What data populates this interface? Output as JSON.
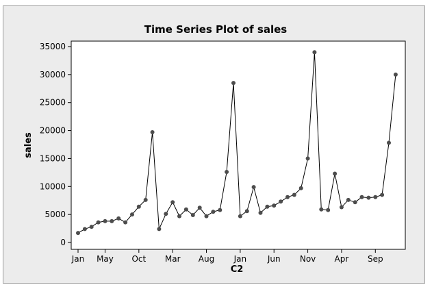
{
  "chart_data": {
    "type": "line",
    "title": "Time Series Plot of sales",
    "xlabel": "C2",
    "ylabel": "sales",
    "ylim": [
      0,
      35000
    ],
    "yticks": [
      0,
      5000,
      10000,
      15000,
      20000,
      25000,
      30000,
      35000
    ],
    "xticks": [
      {
        "label": "Jan",
        "index": 0
      },
      {
        "label": "May",
        "index": 4
      },
      {
        "label": "Oct",
        "index": 9
      },
      {
        "label": "Mar",
        "index": 14
      },
      {
        "label": "Aug",
        "index": 19
      },
      {
        "label": "Jan",
        "index": 24
      },
      {
        "label": "Jun",
        "index": 29
      },
      {
        "label": "Nov",
        "index": 34
      },
      {
        "label": "Apr",
        "index": 39
      },
      {
        "label": "Sep",
        "index": 44
      }
    ],
    "grid": false,
    "legend": "none",
    "line_color": "#000000",
    "marker_color": "#4d4d4d",
    "series": [
      {
        "values": [
          1700,
          2400,
          2800,
          3600,
          3800,
          3800,
          4300,
          3600,
          5000,
          6400,
          7600,
          19700,
          2400,
          5100,
          7200,
          4700,
          5900,
          4900,
          6200,
          4700,
          5500,
          5800,
          12600,
          28500,
          4700,
          5600,
          9900,
          5300,
          6400,
          6600,
          7300,
          8100,
          8500,
          9700,
          15000,
          34000,
          5900,
          5800,
          12300,
          6300,
          7600,
          7200,
          8100,
          8000,
          8100,
          8500,
          17800,
          30000
        ]
      }
    ]
  }
}
